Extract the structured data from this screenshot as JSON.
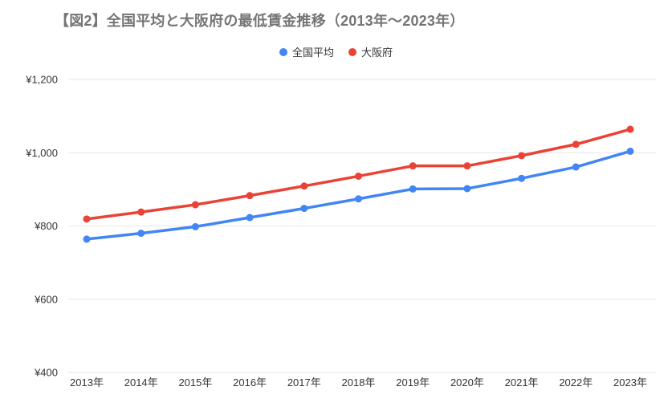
{
  "title": {
    "text": "【図2】全国平均と大阪府の最低賃金推移（2013年～2023年）",
    "color": "#757575"
  },
  "legend": {
    "position": "top-center"
  },
  "chart_data": {
    "type": "line",
    "title": "【図2】全国平均と大阪府の最低賃金推移（2013年～2023年）",
    "categories": [
      "2013年",
      "2014年",
      "2015年",
      "2016年",
      "2017年",
      "2018年",
      "2019年",
      "2020年",
      "2021年",
      "2022年",
      "2023年"
    ],
    "series": [
      {
        "id": "national-average",
        "name": "全国平均",
        "color": "#4285F4",
        "values": [
          764,
          780,
          798,
          823,
          848,
          874,
          901,
          902,
          930,
          961,
          1004
        ]
      },
      {
        "id": "osaka",
        "name": "大阪府",
        "color": "#EA4335",
        "values": [
          819,
          838,
          858,
          883,
          909,
          936,
          964,
          964,
          992,
          1023,
          1064
        ]
      }
    ],
    "xlabel": "",
    "ylabel": "",
    "y_axis": {
      "range": [
        400,
        1200
      ],
      "ticks": [
        400,
        600,
        800,
        1000,
        1200
      ],
      "tick_labels": [
        "¥400",
        "¥600",
        "¥800",
        "¥1,000",
        "¥1,200"
      ]
    },
    "grid": true,
    "legend_position": "top",
    "colors": {
      "background": "#ffffff",
      "title_text": "#757575",
      "axis_text": "#333333",
      "gridline": "#e6e6e6"
    }
  }
}
